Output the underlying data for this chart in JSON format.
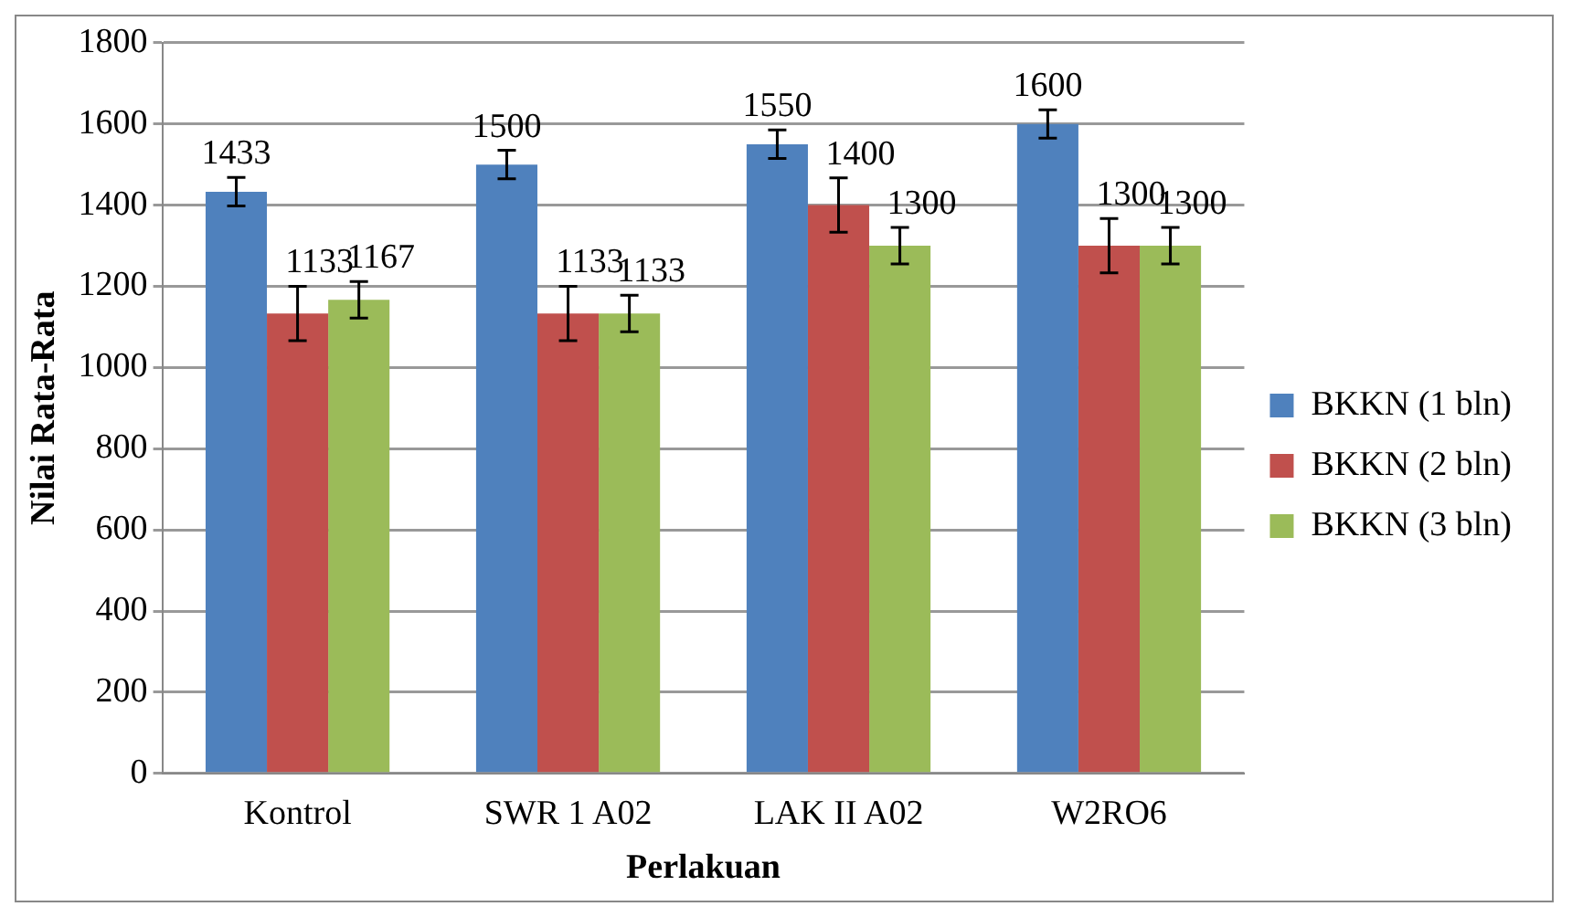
{
  "chart_data": {
    "type": "bar",
    "xlabel": "Perlakuan",
    "ylabel": "Nilai Rata-Rata",
    "categories": [
      "Kontrol",
      "SWR 1 A02",
      "LAK II A02",
      "W2RO6"
    ],
    "series": [
      {
        "name": "BKKN (1 bln)",
        "color": "#4f81bd",
        "values": [
          1433,
          1500,
          1550,
          1600
        ],
        "errors": [
          35,
          35,
          35,
          35
        ]
      },
      {
        "name": "BKKN (2 bln)",
        "color": "#c0504d",
        "values": [
          1133,
          1133,
          1400,
          1300
        ],
        "errors": [
          67,
          67,
          67,
          67
        ]
      },
      {
        "name": "BKKN (3 bln)",
        "color": "#9bbb59",
        "values": [
          1167,
          1133,
          1300,
          1300
        ],
        "errors": [
          45,
          45,
          45,
          45
        ]
      }
    ],
    "ylim": [
      0,
      1800
    ],
    "yticks": [
      0,
      200,
      400,
      600,
      800,
      1000,
      1200,
      1400,
      1600,
      1800
    ],
    "grid": "y",
    "legend": "right",
    "data_labels": true
  }
}
